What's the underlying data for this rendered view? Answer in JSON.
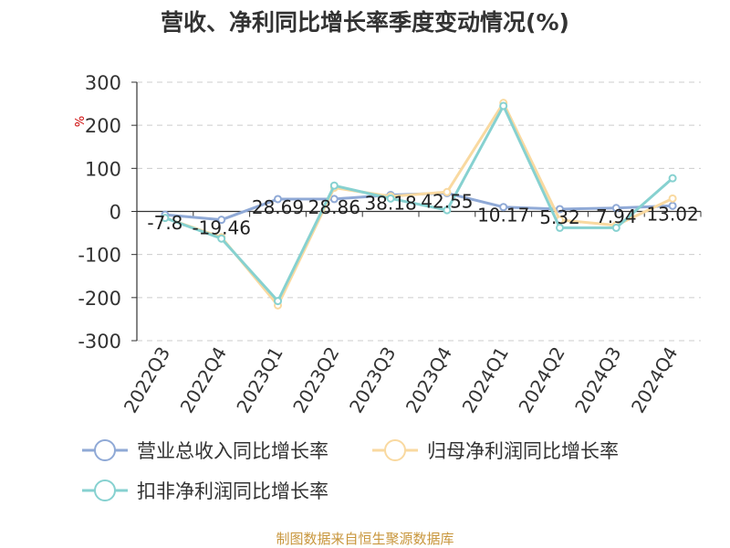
{
  "chart_data": {
    "type": "line",
    "title": "营收、净利同比增长率季度变动情况(%)",
    "ylabel": "%",
    "xlabel": "",
    "ylim": [
      -300,
      300
    ],
    "yticks": [
      300,
      200,
      100,
      0,
      -100,
      -200,
      -300
    ],
    "grid": true,
    "legend_position": "bottom",
    "categories": [
      "2022Q3",
      "2022Q4",
      "2023Q1",
      "2023Q2",
      "2023Q3",
      "2023Q4",
      "2024Q1",
      "2024Q2",
      "2024Q3",
      "2024Q4"
    ],
    "series": [
      {
        "name": "营业总收入同比增长率",
        "color": "#8fa9d6",
        "values": [
          -7.8,
          -19.46,
          28.69,
          28.86,
          38.18,
          42.55,
          10.17,
          5.32,
          7.94,
          13.02
        ],
        "labels": [
          "-7.8",
          "-19.46",
          "28.69",
          "28.86",
          "38.18",
          "42.55",
          "10.17",
          "5.32",
          "7.94",
          "13.02"
        ]
      },
      {
        "name": "归母净利润同比增长率",
        "color": "#f9d9a0",
        "values": [
          -15,
          -60,
          -218,
          55,
          35,
          45,
          252,
          -20,
          -32,
          30
        ]
      },
      {
        "name": "扣非净利润同比增长率",
        "color": "#86d1d0",
        "values": [
          -15,
          -63,
          -208,
          60,
          30,
          3,
          245,
          -38,
          -38,
          77
        ]
      }
    ]
  },
  "source": "制图数据来自恒生聚源数据库"
}
